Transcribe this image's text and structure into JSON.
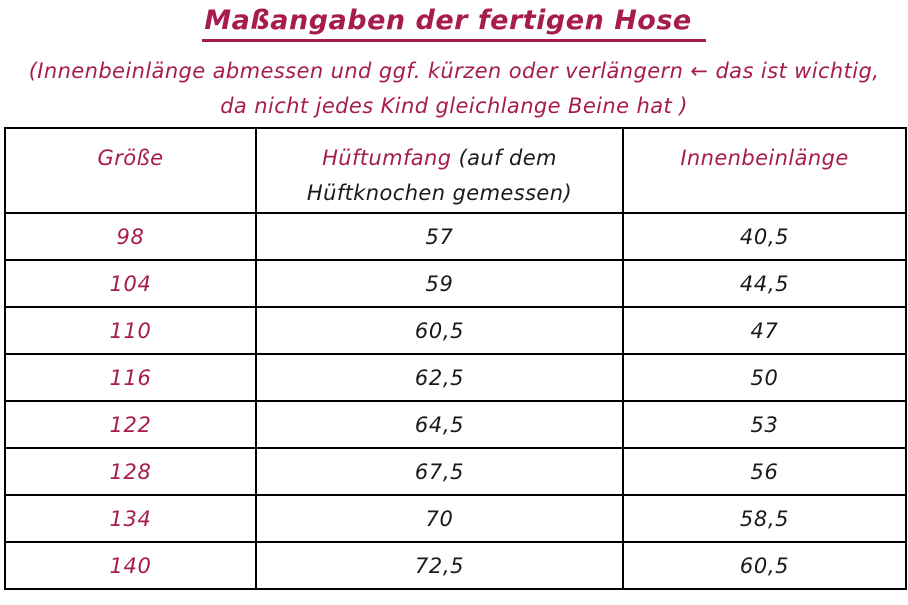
{
  "page": {
    "title": "Maßangaben der fertigen Hose",
    "subtitle_line1": "(Innenbeinlänge abmessen und ggf. kürzen oder verlängern ← das ist wichtig,",
    "subtitle_line2": "da nicht jedes Kind gleichlange Beine hat )"
  },
  "colors": {
    "accent": "#A61C4F",
    "text": "#1A1A1A",
    "border": "#000000",
    "background": "#FFFFFF"
  },
  "table": {
    "columns": [
      {
        "label": "Größe"
      },
      {
        "label_accent": "Hüftumfang",
        "label_note": "(auf dem Hüftknochen gemessen)"
      },
      {
        "label": "Innenbeinlänge"
      }
    ],
    "rows": [
      [
        "98",
        "57",
        "40,5"
      ],
      [
        "104",
        "59",
        "44,5"
      ],
      [
        "110",
        "60,5",
        "47"
      ],
      [
        "116",
        "62,5",
        "50"
      ],
      [
        "122",
        "64,5",
        "53"
      ],
      [
        "128",
        "67,5",
        "56"
      ],
      [
        "134",
        "70",
        "58,5"
      ],
      [
        "140",
        "72,5",
        "60,5"
      ]
    ]
  },
  "chart_data": {
    "type": "table",
    "title": "Maßangaben der fertigen Hose",
    "columns": [
      "Größe",
      "Hüftumfang (auf dem Hüftknochen gemessen)",
      "Innenbeinlänge"
    ],
    "rows": [
      [
        "98",
        "57",
        "40,5"
      ],
      [
        "104",
        "59",
        "44,5"
      ],
      [
        "110",
        "60,5",
        "47"
      ],
      [
        "116",
        "62,5",
        "50"
      ],
      [
        "122",
        "64,5",
        "53"
      ],
      [
        "128",
        "67,5",
        "56"
      ],
      [
        "134",
        "70",
        "58,5"
      ],
      [
        "140",
        "72,5",
        "60,5"
      ]
    ]
  }
}
